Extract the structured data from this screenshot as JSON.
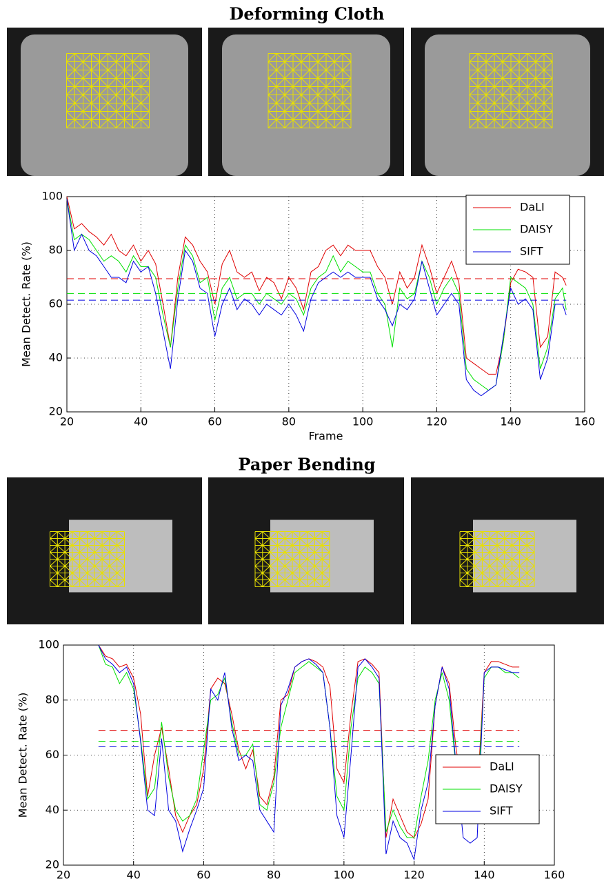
{
  "chart_data": [
    {
      "type": "line",
      "title": "Deforming Cloth",
      "xlabel": "Frame",
      "ylabel": "Mean Detect. Rate (%)",
      "x": [
        20,
        22,
        24,
        26,
        28,
        30,
        32,
        34,
        36,
        38,
        40,
        42,
        44,
        46,
        48,
        50,
        52,
        54,
        56,
        58,
        60,
        62,
        64,
        66,
        68,
        70,
        72,
        74,
        76,
        78,
        80,
        82,
        84,
        86,
        88,
        90,
        92,
        94,
        96,
        98,
        100,
        102,
        104,
        106,
        108,
        110,
        112,
        114,
        116,
        118,
        120,
        122,
        124,
        126,
        128,
        130,
        132,
        134,
        136,
        138,
        140,
        142,
        144,
        146,
        148,
        150,
        152,
        154,
        155
      ],
      "series": [
        {
          "name": "DaLI",
          "color": "#e00000",
          "mean": 69.5,
          "values": [
            100,
            88,
            90,
            87,
            85,
            82,
            86,
            80,
            78,
            82,
            76,
            80,
            75,
            60,
            44,
            70,
            85,
            82,
            76,
            72,
            60,
            75,
            80,
            72,
            70,
            72,
            65,
            70,
            68,
            62,
            70,
            66,
            58,
            72,
            74,
            80,
            82,
            78,
            82,
            80,
            80,
            80,
            74,
            70,
            60,
            72,
            66,
            70,
            82,
            74,
            64,
            70,
            76,
            68,
            40,
            38,
            36,
            34,
            34,
            46,
            68,
            73,
            72,
            70,
            44,
            48,
            72,
            70,
            67
          ]
        },
        {
          "name": "DAISY",
          "color": "#00e000",
          "mean": 64,
          "values": [
            99,
            84,
            86,
            84,
            80,
            76,
            78,
            76,
            72,
            78,
            74,
            74,
            70,
            56,
            44,
            66,
            82,
            78,
            68,
            70,
            54,
            66,
            70,
            62,
            64,
            64,
            60,
            64,
            62,
            60,
            64,
            62,
            56,
            66,
            70,
            72,
            78,
            72,
            76,
            74,
            72,
            72,
            64,
            60,
            44,
            66,
            62,
            64,
            76,
            70,
            60,
            66,
            70,
            64,
            36,
            32,
            30,
            28,
            30,
            46,
            70,
            68,
            66,
            60,
            36,
            44,
            62,
            66,
            58
          ]
        },
        {
          "name": "SIFT",
          "color": "#0000e0",
          "mean": 61.5,
          "values": [
            99,
            80,
            86,
            80,
            78,
            74,
            70,
            70,
            68,
            76,
            72,
            74,
            64,
            50,
            36,
            62,
            80,
            76,
            66,
            64,
            48,
            60,
            66,
            58,
            62,
            60,
            56,
            60,
            58,
            56,
            60,
            56,
            50,
            62,
            68,
            70,
            72,
            70,
            72,
            70,
            70,
            70,
            62,
            58,
            52,
            60,
            58,
            62,
            76,
            66,
            56,
            60,
            64,
            60,
            32,
            28,
            26,
            28,
            30,
            48,
            66,
            60,
            62,
            58,
            32,
            40,
            60,
            60,
            56
          ]
        }
      ],
      "xlim": [
        20,
        160
      ],
      "xticks": [
        20,
        40,
        60,
        80,
        100,
        120,
        140,
        160
      ],
      "ylim": [
        20,
        100
      ],
      "yticks": [
        20,
        40,
        60,
        80,
        100
      ],
      "grid": true,
      "legend": "top-right"
    },
    {
      "type": "line",
      "title": "Paper Bending",
      "xlabel": "Frame",
      "ylabel": "Mean Detect. Rate (%)",
      "x": [
        30,
        32,
        34,
        36,
        38,
        40,
        42,
        44,
        46,
        48,
        50,
        52,
        54,
        56,
        58,
        60,
        62,
        64,
        66,
        68,
        70,
        72,
        74,
        76,
        78,
        80,
        82,
        84,
        86,
        88,
        90,
        92,
        94,
        96,
        98,
        100,
        102,
        104,
        106,
        108,
        110,
        112,
        114,
        116,
        118,
        120,
        122,
        124,
        126,
        128,
        130,
        132,
        134,
        136,
        138,
        140,
        142,
        144,
        146,
        148,
        150
      ],
      "series": [
        {
          "name": "DaLI",
          "color": "#e00000",
          "mean": 69,
          "values": [
            100,
            96,
            95,
            92,
            93,
            88,
            75,
            45,
            60,
            70,
            55,
            38,
            32,
            38,
            42,
            55,
            84,
            88,
            86,
            75,
            62,
            55,
            62,
            45,
            42,
            52,
            80,
            82,
            92,
            94,
            95,
            94,
            92,
            85,
            55,
            50,
            75,
            94,
            95,
            93,
            90,
            30,
            44,
            38,
            32,
            30,
            35,
            44,
            78,
            92,
            86,
            62,
            48,
            42,
            45,
            90,
            94,
            94,
            93,
            92,
            92
          ]
        },
        {
          "name": "DAISY",
          "color": "#00e000",
          "mean": 65,
          "values": [
            100,
            93,
            92,
            86,
            90,
            84,
            66,
            44,
            48,
            72,
            52,
            40,
            36,
            38,
            44,
            62,
            80,
            82,
            88,
            72,
            60,
            60,
            64,
            42,
            40,
            50,
            70,
            80,
            90,
            92,
            94,
            92,
            90,
            70,
            45,
            40,
            70,
            88,
            92,
            90,
            86,
            32,
            40,
            34,
            30,
            30,
            45,
            58,
            80,
            90,
            80,
            55,
            40,
            38,
            42,
            88,
            92,
            92,
            90,
            90,
            88
          ]
        },
        {
          "name": "SIFT",
          "color": "#0000e0",
          "mean": 63,
          "values": [
            100,
            95,
            93,
            90,
            92,
            86,
            65,
            40,
            38,
            66,
            40,
            36,
            25,
            33,
            40,
            48,
            84,
            80,
            90,
            70,
            58,
            60,
            58,
            40,
            36,
            32,
            78,
            84,
            92,
            94,
            95,
            93,
            90,
            70,
            38,
            30,
            60,
            92,
            95,
            92,
            88,
            24,
            36,
            30,
            28,
            22,
            40,
            50,
            78,
            92,
            84,
            56,
            30,
            28,
            30,
            90,
            92,
            92,
            91,
            90,
            90
          ]
        }
      ],
      "xlim": [
        20,
        160
      ],
      "xticks": [
        20,
        40,
        60,
        80,
        100,
        120,
        140,
        160
      ],
      "ylim": [
        20,
        100
      ],
      "yticks": [
        20,
        40,
        60,
        80,
        100
      ],
      "grid": true,
      "legend": "bottom-right"
    }
  ]
}
